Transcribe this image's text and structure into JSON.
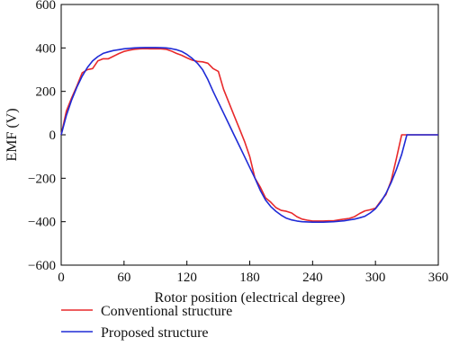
{
  "chart_data": {
    "type": "line",
    "title": "",
    "xlabel": "Rotor position (electrical degree)",
    "ylabel": "EMF (V)",
    "xlim": [
      0,
      360
    ],
    "ylim": [
      -600,
      600
    ],
    "xticks": [
      0,
      60,
      120,
      180,
      240,
      300,
      360
    ],
    "yticks": [
      600,
      400,
      200,
      0,
      -200,
      -400,
      -600
    ],
    "xtick_labels": [
      "0",
      "60",
      "120",
      "180",
      "240",
      "300",
      "360"
    ],
    "ytick_labels": [
      "600",
      "400",
      "200",
      "0",
      "−200",
      "−400",
      "−600"
    ],
    "grid": false,
    "legend_position": "bottom-left",
    "series": [
      {
        "name": "Conventional structure",
        "color": "#e8292b",
        "x": [
          0,
          5,
          10,
          15,
          20,
          25,
          30,
          35,
          40,
          45,
          50,
          55,
          60,
          65,
          70,
          75,
          80,
          85,
          90,
          95,
          100,
          105,
          110,
          115,
          120,
          125,
          130,
          135,
          140,
          145,
          150,
          155,
          160,
          165,
          170,
          175,
          180,
          185,
          190,
          195,
          200,
          205,
          210,
          215,
          220,
          225,
          230,
          235,
          240,
          245,
          250,
          255,
          260,
          265,
          270,
          275,
          280,
          285,
          290,
          295,
          300,
          305,
          310,
          315,
          320,
          325,
          330,
          335,
          340,
          345,
          350,
          355,
          360
        ],
        "values": [
          0,
          110,
          170,
          225,
          285,
          300,
          305,
          340,
          350,
          350,
          362,
          374,
          384,
          390,
          394,
          396,
          397,
          396,
          396,
          396,
          394,
          386,
          375,
          366,
          354,
          344,
          338,
          336,
          330,
          305,
          292,
          210,
          150,
          90,
          30,
          -30,
          -100,
          -200,
          -240,
          -290,
          -310,
          -335,
          -348,
          -352,
          -360,
          -377,
          -388,
          -393,
          -397,
          -397,
          -397,
          -396,
          -396,
          -392,
          -388,
          -385,
          -377,
          -362,
          -350,
          -345,
          -338,
          -305,
          -275,
          -212,
          -110,
          0,
          0,
          0,
          0,
          0,
          0,
          0,
          0
        ]
      },
      {
        "name": "Proposed structure",
        "color": "#1f2bd6",
        "x": [
          0,
          5,
          10,
          15,
          20,
          25,
          30,
          35,
          40,
          45,
          50,
          55,
          60,
          65,
          70,
          75,
          80,
          85,
          90,
          95,
          100,
          105,
          110,
          115,
          120,
          125,
          130,
          135,
          140,
          145,
          150,
          155,
          160,
          165,
          170,
          175,
          180,
          185,
          190,
          195,
          200,
          205,
          210,
          215,
          220,
          225,
          230,
          235,
          240,
          245,
          250,
          255,
          260,
          265,
          270,
          275,
          280,
          285,
          290,
          295,
          300,
          305,
          310,
          315,
          320,
          325,
          330,
          335,
          340,
          345,
          350,
          355,
          360
        ],
        "values": [
          0,
          90,
          160,
          220,
          270,
          310,
          340,
          360,
          375,
          382,
          388,
          392,
          396,
          398,
          400,
          401,
          402,
          402,
          402,
          401,
          400,
          397,
          392,
          384,
          370,
          352,
          330,
          300,
          255,
          200,
          150,
          100,
          50,
          0,
          -50,
          -100,
          -150,
          -200,
          -255,
          -300,
          -330,
          -352,
          -370,
          -384,
          -392,
          -397,
          -400,
          -401,
          -402,
          -402,
          -402,
          -401,
          -400,
          -398,
          -396,
          -392,
          -388,
          -382,
          -375,
          -360,
          -340,
          -310,
          -270,
          -220,
          -160,
          -90,
          0,
          0,
          0,
          0,
          0,
          0,
          0
        ]
      }
    ]
  },
  "legend": {
    "items": [
      {
        "label": "Conventional structure",
        "color": "#e8292b"
      },
      {
        "label": "Proposed structure",
        "color": "#1f2bd6"
      }
    ]
  }
}
